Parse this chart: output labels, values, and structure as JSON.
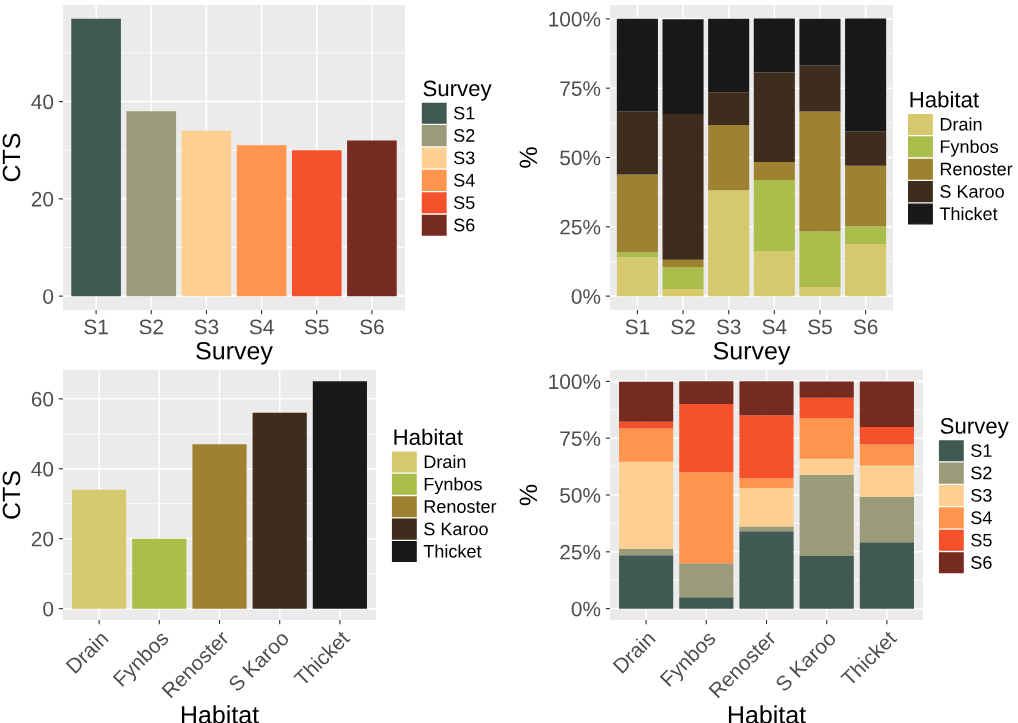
{
  "chart_data": [
    {
      "type": "bar",
      "xlabel": "Survey",
      "ylabel": "CTS",
      "legend_title": "Survey",
      "legend": "right",
      "grid": true,
      "categories": [
        "S1",
        "S2",
        "S3",
        "S4",
        "S5",
        "S6"
      ],
      "series": [
        {
          "name": "S1",
          "color": "#405953",
          "values": [
            57,
            null,
            null,
            null,
            null,
            null
          ]
        },
        {
          "name": "S2",
          "color": "#9b9b79",
          "values": [
            null,
            38,
            null,
            null,
            null,
            null
          ]
        },
        {
          "name": "S3",
          "color": "#fdd091",
          "values": [
            null,
            null,
            34,
            null,
            null,
            null
          ]
        },
        {
          "name": "S4",
          "color": "#fd954f",
          "values": [
            null,
            null,
            null,
            31,
            null,
            null
          ]
        },
        {
          "name": "S5",
          "color": "#f5512b",
          "values": [
            null,
            null,
            null,
            null,
            30,
            null
          ]
        },
        {
          "name": "S6",
          "color": "#752b20",
          "values": [
            null,
            null,
            null,
            null,
            null,
            32
          ]
        }
      ],
      "ylim": [
        -2.85,
        59.85
      ],
      "yticks": [
        0,
        20,
        40
      ]
    },
    {
      "type": "bar",
      "stacked": true,
      "xlabel": "Survey",
      "ylabel": "%",
      "legend_title": "Habitat",
      "legend": "right",
      "grid": true,
      "categories": [
        "S1",
        "S2",
        "S3",
        "S4",
        "S5",
        "S6"
      ],
      "series": [
        {
          "name": "Drain",
          "color": "#d6c86c",
          "values": [
            14.0,
            2.6,
            38.2,
            16.1,
            3.3,
            18.8
          ]
        },
        {
          "name": "Fynbos",
          "color": "#abbd4a",
          "values": [
            1.8,
            7.9,
            0,
            25.8,
            20.0,
            6.3
          ]
        },
        {
          "name": "Renoster",
          "color": "#9e8232",
          "values": [
            28.1,
            2.6,
            23.5,
            6.5,
            43.3,
            21.9
          ]
        },
        {
          "name": "S Karoo",
          "color": "#3e2d1d",
          "values": [
            22.8,
            52.6,
            11.8,
            32.3,
            16.7,
            12.5
          ]
        },
        {
          "name": "Thicket",
          "color": "#181818",
          "values": [
            33.3,
            34.2,
            26.5,
            19.4,
            16.7,
            40.6
          ]
        }
      ],
      "ylim": [
        -5,
        105
      ],
      "yticks": [
        {
          "value": 0,
          "label": "0%"
        },
        {
          "value": 25,
          "label": "25%"
        },
        {
          "value": 50,
          "label": "50%"
        },
        {
          "value": 75,
          "label": "75%"
        },
        {
          "value": 100,
          "label": "100%"
        }
      ]
    },
    {
      "type": "bar",
      "xlabel": "Habitat",
      "ylabel": "CTS",
      "legend_title": "Habitat",
      "legend": "right",
      "grid": true,
      "categories": [
        "Drain",
        "Fynbos",
        "Renoster",
        "S Karoo",
        "Thicket"
      ],
      "series": [
        {
          "name": "Drain",
          "color": "#d6c86c",
          "values": [
            34,
            null,
            null,
            null,
            null
          ]
        },
        {
          "name": "Fynbos",
          "color": "#abbd4a",
          "values": [
            null,
            20,
            null,
            null,
            null
          ]
        },
        {
          "name": "Renoster",
          "color": "#9e8232",
          "values": [
            null,
            null,
            47,
            null,
            null
          ]
        },
        {
          "name": "S Karoo",
          "color": "#3e2d1d",
          "values": [
            null,
            null,
            null,
            56,
            null
          ]
        },
        {
          "name": "Thicket",
          "color": "#181818",
          "values": [
            null,
            null,
            null,
            null,
            65
          ]
        }
      ],
      "ylim": [
        -3.25,
        68.25
      ],
      "yticks": [
        0,
        20,
        40,
        60
      ]
    },
    {
      "type": "bar",
      "stacked": true,
      "xlabel": "Habitat",
      "ylabel": "%",
      "legend_title": "Survey",
      "legend": "right",
      "grid": true,
      "categories": [
        "Drain",
        "Fynbos",
        "Renoster",
        "S Karoo",
        "Thicket"
      ],
      "series": [
        {
          "name": "S1",
          "color": "#405953",
          "values": [
            23.5,
            5.0,
            34.0,
            23.2,
            29.2
          ]
        },
        {
          "name": "S2",
          "color": "#9b9b79",
          "values": [
            2.9,
            15.0,
            2.1,
            35.7,
            20.0
          ]
        },
        {
          "name": "S3",
          "color": "#fdd091",
          "values": [
            38.2,
            0,
            17.0,
            7.1,
            13.8
          ]
        },
        {
          "name": "S4",
          "color": "#fd954f",
          "values": [
            14.7,
            40.0,
            4.3,
            17.9,
            9.2
          ]
        },
        {
          "name": "S5",
          "color": "#f5512b",
          "values": [
            2.9,
            30.0,
            27.7,
            8.9,
            7.7
          ]
        },
        {
          "name": "S6",
          "color": "#752b20",
          "values": [
            17.6,
            10.0,
            14.9,
            7.1,
            20.0
          ]
        }
      ],
      "ylim": [
        -5,
        105
      ],
      "yticks": [
        {
          "value": 0,
          "label": "0%"
        },
        {
          "value": 25,
          "label": "25%"
        },
        {
          "value": 50,
          "label": "50%"
        },
        {
          "value": 75,
          "label": "75%"
        },
        {
          "value": 100,
          "label": "100%"
        }
      ]
    }
  ]
}
